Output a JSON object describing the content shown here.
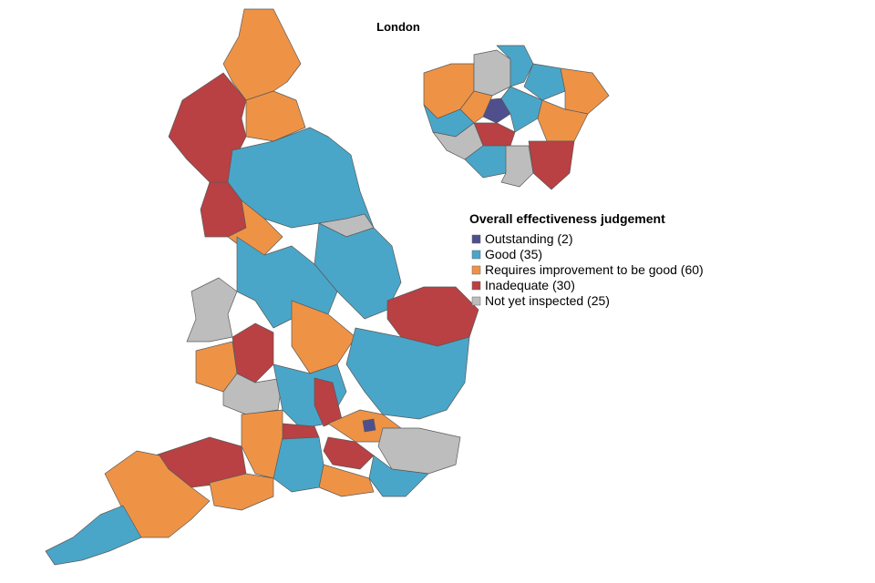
{
  "map": {
    "inset_title": "London",
    "legend": {
      "title": "Overall effectiveness judgement",
      "items": [
        {
          "label": "Outstanding (2)",
          "color": "#4e4f8c"
        },
        {
          "label": "Good (35)",
          "color": "#4aa6c8"
        },
        {
          "label": "Requires improvement to be good (60)",
          "color": "#ee9346"
        },
        {
          "label": "Inadequate (30)",
          "color": "#b94043"
        },
        {
          "label": "Not yet inspected (25)",
          "color": "#bdbdbd"
        }
      ]
    }
  }
}
